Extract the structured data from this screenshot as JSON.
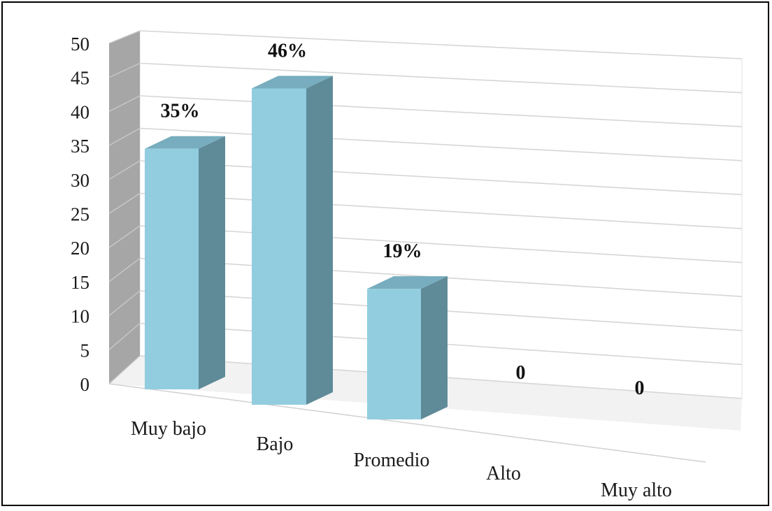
{
  "chart_data": {
    "type": "bar",
    "categories": [
      "Muy bajo",
      "Bajo",
      "Promedio",
      "Alto",
      "Muy alto"
    ],
    "values": [
      35,
      46,
      19,
      0,
      0
    ],
    "data_labels": [
      "35%",
      "46%",
      "19%",
      "0",
      "0"
    ],
    "yticks": [
      "0",
      "5",
      "10",
      "15",
      "20",
      "25",
      "30",
      "35",
      "40",
      "45",
      "50"
    ],
    "ylim": [
      0,
      50
    ],
    "title": "",
    "xlabel": "",
    "ylabel": "",
    "grid": true,
    "legend": "none",
    "style": "3d-column",
    "colors": {
      "bar_front": "#92cddf",
      "bar_side": "#5f8b99",
      "bar_top": "#77adbe",
      "back_wall": "#ffffff",
      "side_wall": "#a6a6a6",
      "floor": "#f2f2f2",
      "gridline": "#d6d6d6"
    }
  }
}
